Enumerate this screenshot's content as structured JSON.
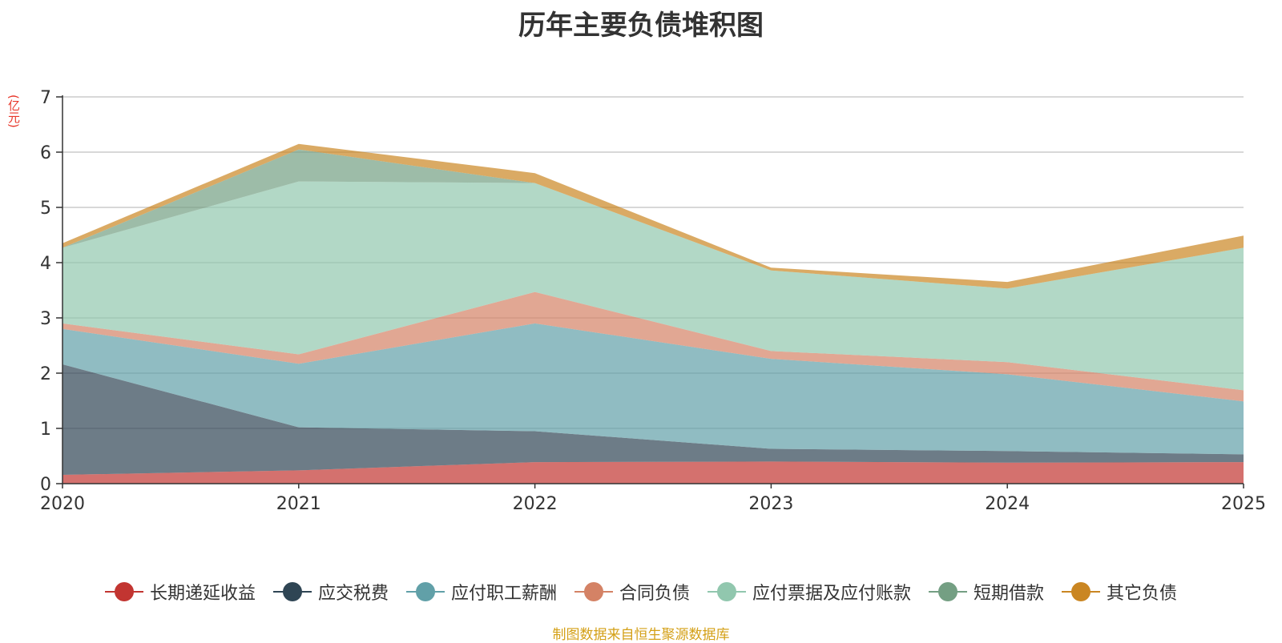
{
  "chart_data": {
    "type": "area",
    "stacked": true,
    "title": "历年主要负债堆积图",
    "ylabel": "(亿元)",
    "xlabel": "",
    "x": [
      "2020",
      "2021",
      "2022",
      "2023",
      "2024",
      "2025"
    ],
    "ylim": [
      0,
      7
    ],
    "yticks": [
      "0",
      "1",
      "2",
      "3",
      "4",
      "5",
      "6",
      "7"
    ],
    "grid": true,
    "legend_position": "bottom",
    "series": [
      {
        "name": "长期递延收益",
        "color": "#c23531",
        "values": [
          0.16,
          0.24,
          0.39,
          0.4,
          0.38,
          0.39
        ]
      },
      {
        "name": "应交税费",
        "color": "#2f4554",
        "values": [
          2.0,
          0.78,
          0.56,
          0.23,
          0.21,
          0.14
        ]
      },
      {
        "name": "应付职工薪酬",
        "color": "#61a0a8",
        "values": [
          0.64,
          1.15,
          1.95,
          1.63,
          1.39,
          0.96
        ]
      },
      {
        "name": "合同负债",
        "color": "#d48265",
        "values": [
          0.1,
          0.17,
          0.57,
          0.14,
          0.22,
          0.2
        ]
      },
      {
        "name": "应付票据及应付账款",
        "color": "#91c7ae",
        "values": [
          1.37,
          3.13,
          1.97,
          1.46,
          1.33,
          2.58
        ]
      },
      {
        "name": "短期借款",
        "color": "#749f83",
        "values": [
          0.0,
          0.58,
          0.0,
          0.0,
          0.0,
          0.0
        ]
      },
      {
        "name": "其它负债",
        "color": "#ca8622",
        "values": [
          0.08,
          0.1,
          0.18,
          0.05,
          0.12,
          0.22
        ]
      }
    ]
  },
  "source_note": "制图数据来自恒生聚源数据库"
}
